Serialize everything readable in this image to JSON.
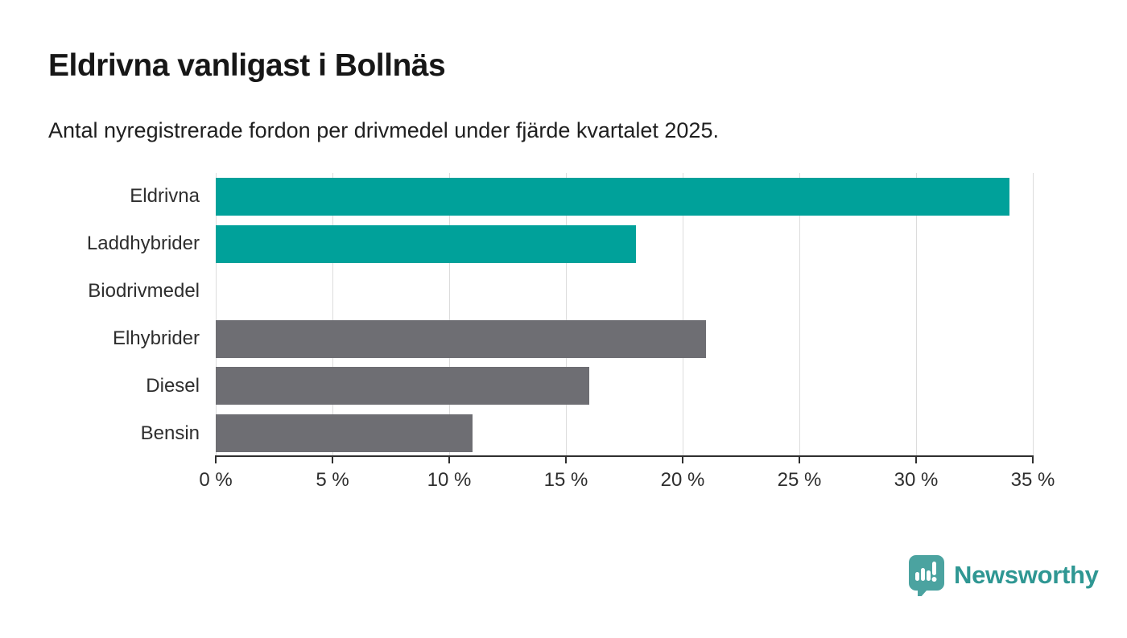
{
  "header": {
    "title": "Eldrivna vanligast i Bollnäs",
    "subtitle": "Antal nyregistrerade fordon per drivmedel under fjärde kvartalet 2025."
  },
  "chart_data": {
    "type": "bar",
    "orientation": "horizontal",
    "title": "Eldrivna vanligast i Bollnäs",
    "subtitle": "Antal nyregistrerade fordon per drivmedel under fjärde kvartalet 2025.",
    "categories": [
      "Eldrivna",
      "Laddhybrider",
      "Biodrivmedel",
      "Elhybrider",
      "Diesel",
      "Bensin"
    ],
    "values": [
      34,
      18,
      0,
      21,
      16,
      11
    ],
    "unit": "%",
    "bar_colors": [
      "#00a19a",
      "#00a19a",
      "#6e6e73",
      "#6e6e73",
      "#6e6e73",
      "#6e6e73"
    ],
    "xlim": [
      0,
      35
    ],
    "x_ticks": [
      0,
      5,
      10,
      15,
      20,
      25,
      30,
      35
    ],
    "x_tick_labels": [
      "0 %",
      "5 %",
      "10 %",
      "15 %",
      "20 %",
      "25 %",
      "30 %",
      "35 %"
    ],
    "grid": "vertical-only",
    "legend": "none",
    "xlabel": "",
    "ylabel": ""
  },
  "branding": {
    "logo_text": "Newsworthy",
    "logo_icon": "bar-chart-speech-bubble-icon",
    "logo_icon_color": "#4ba3a0",
    "logo_text_color": "#2f9793"
  },
  "colors": {
    "teal_bar": "#00a19a",
    "gray_bar": "#6e6e73",
    "gridline": "#dcdcdc",
    "axis": "#2f2f2f",
    "title_text": "#171717",
    "body_text": "#2e2e2e",
    "background": "#ffffff"
  }
}
